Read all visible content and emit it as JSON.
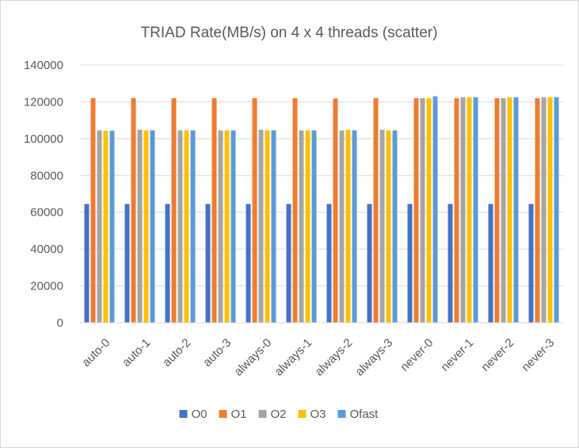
{
  "chart_data": {
    "type": "bar",
    "title": "TRIAD Rate(MB/s) on 4 x 4 threads (scatter)",
    "xlabel": "",
    "ylabel": "",
    "ylim": [
      0,
      140000
    ],
    "yticks": [
      0,
      20000,
      40000,
      60000,
      80000,
      100000,
      120000,
      140000
    ],
    "grid": true,
    "legend_position": "bottom",
    "categories": [
      "auto-0",
      "auto-1",
      "auto-2",
      "auto-3",
      "always-0",
      "always-1",
      "always-2",
      "always-3",
      "never-0",
      "never-1",
      "never-2",
      "never-3"
    ],
    "series": [
      {
        "name": "O0",
        "color": "#4472C4",
        "values": [
          64500,
          64500,
          64500,
          64500,
          64500,
          64500,
          64500,
          64500,
          64500,
          64500,
          64500,
          64500
        ]
      },
      {
        "name": "O1",
        "color": "#ED7D31",
        "values": [
          122000,
          122000,
          122000,
          122000,
          122000,
          122000,
          121800,
          122000,
          122000,
          122000,
          122000,
          122000
        ]
      },
      {
        "name": "O2",
        "color": "#A5A5A5",
        "values": [
          104500,
          104800,
          104500,
          104500,
          104800,
          104500,
          104500,
          104800,
          122000,
          122500,
          122000,
          122500
        ]
      },
      {
        "name": "O3",
        "color": "#FFC000",
        "values": [
          104300,
          104500,
          104500,
          104500,
          104500,
          104500,
          104800,
          104500,
          122000,
          122500,
          122500,
          122500
        ]
      },
      {
        "name": "Ofast",
        "color": "#5B9BD5",
        "values": [
          104300,
          104500,
          104500,
          104500,
          104500,
          104500,
          104500,
          104500,
          123000,
          122500,
          122500,
          122500
        ]
      }
    ]
  }
}
